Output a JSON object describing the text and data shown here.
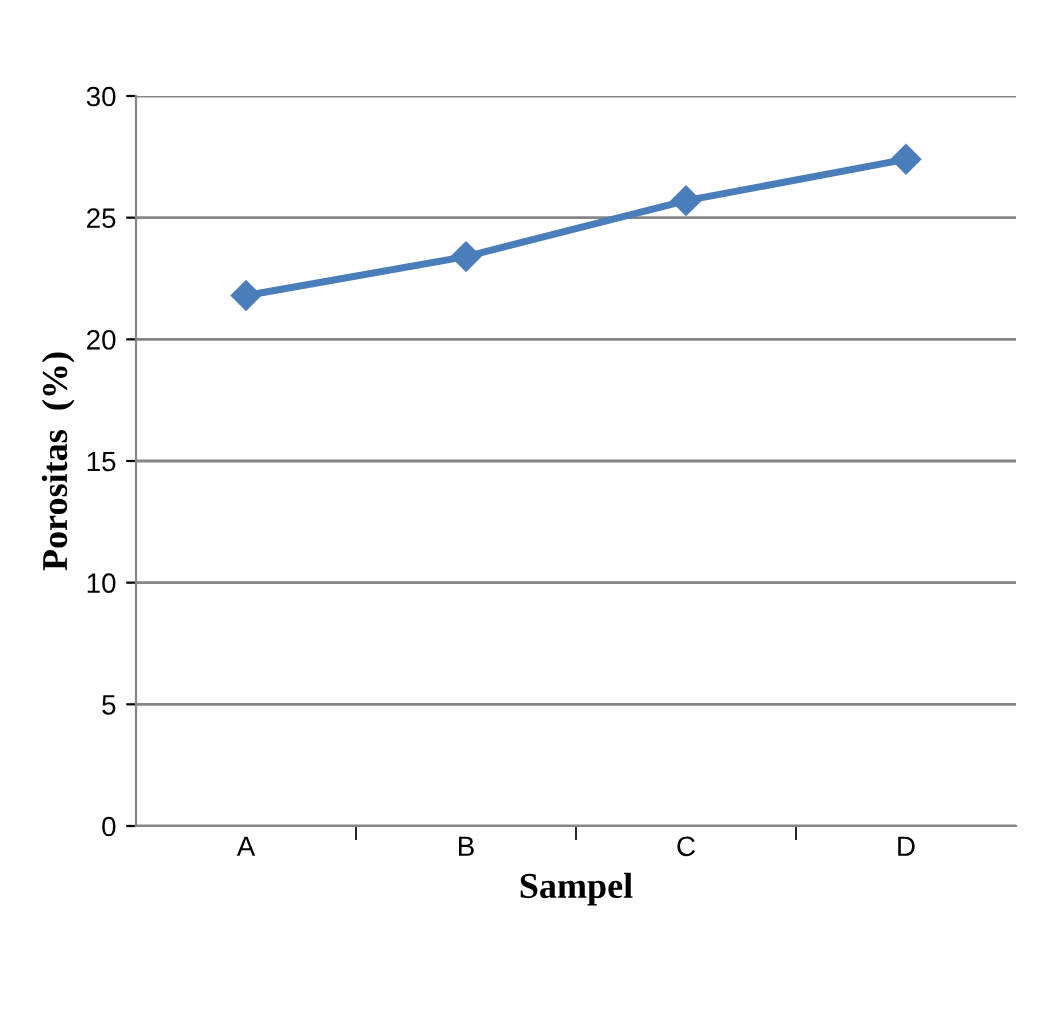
{
  "chart_data": {
    "type": "line",
    "xlabel": "Sampel",
    "ylabel": "Porositas  (%)",
    "categories": [
      "A",
      "B",
      "C",
      "D"
    ],
    "series": [
      {
        "color": "#4a7ebb",
        "values": [
          21.8,
          23.4,
          25.7,
          27.4
        ]
      }
    ],
    "ylim": [
      0,
      30
    ],
    "yticks": [
      0,
      5,
      10,
      15,
      20,
      25,
      30
    ],
    "grid": "y",
    "marker": "diamond",
    "line_style": "solid",
    "legend": false
  }
}
